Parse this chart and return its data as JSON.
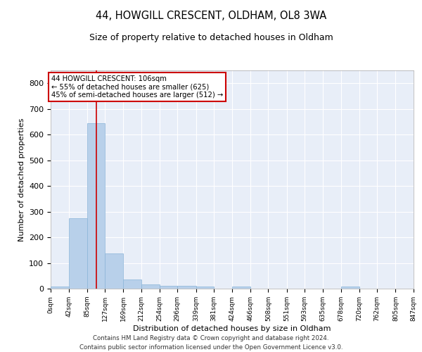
{
  "title": "44, HOWGILL CRESCENT, OLDHAM, OL8 3WA",
  "subtitle": "Size of property relative to detached houses in Oldham",
  "xlabel": "Distribution of detached houses by size in Oldham",
  "ylabel": "Number of detached properties",
  "bar_color": "#b8d0ea",
  "bar_edge_color": "#8ab4d8",
  "background_color": "#e8eef8",
  "grid_color": "#ffffff",
  "annotation_box_color": "#ffffff",
  "annotation_box_edge": "#cc0000",
  "red_line_color": "#cc0000",
  "property_sqm": 106,
  "annotation_line1": "44 HOWGILL CRESCENT: 106sqm",
  "annotation_line2": "← 55% of detached houses are smaller (625)",
  "annotation_line3": "45% of semi-detached houses are larger (512) →",
  "bin_edges": [
    0,
    42,
    85,
    127,
    169,
    212,
    254,
    296,
    339,
    381,
    424,
    466,
    508,
    551,
    593,
    635,
    678,
    720,
    762,
    805,
    847
  ],
  "bin_counts": [
    8,
    275,
    645,
    138,
    36,
    17,
    12,
    11,
    8,
    0,
    8,
    0,
    0,
    0,
    0,
    0,
    8,
    0,
    0,
    0
  ],
  "tick_labels": [
    "0sqm",
    "42sqm",
    "85sqm",
    "127sqm",
    "169sqm",
    "212sqm",
    "254sqm",
    "296sqm",
    "339sqm",
    "381sqm",
    "424sqm",
    "466sqm",
    "508sqm",
    "551sqm",
    "593sqm",
    "635sqm",
    "678sqm",
    "720sqm",
    "762sqm",
    "805sqm",
    "847sqm"
  ],
  "ylim": [
    0,
    850
  ],
  "yticks": [
    0,
    100,
    200,
    300,
    400,
    500,
    600,
    700,
    800
  ],
  "footer1": "Contains HM Land Registry data © Crown copyright and database right 2024.",
  "footer2": "Contains public sector information licensed under the Open Government Licence v3.0."
}
